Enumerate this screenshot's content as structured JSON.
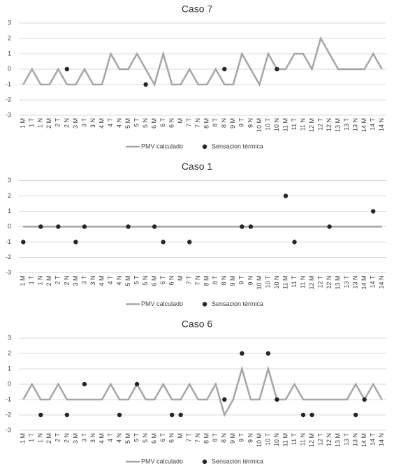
{
  "chart_data": [
    {
      "type": "line",
      "title": "Caso 7",
      "categories": [
        "1 M",
        "1 T",
        "1 N",
        "2 M",
        "2 T",
        "2 N",
        "3 M",
        "3 T",
        "3 N",
        "4 M",
        "4 T",
        "4 N",
        "5 M",
        "5 T",
        "5 N",
        "6 M",
        "6 T",
        "6 N",
        "M",
        "7 T",
        "7 N",
        "8 M",
        "8 T",
        "8 N",
        "9 M",
        "9 T",
        "9 N",
        "10 M",
        "10 T",
        "10 N",
        "11 M",
        "11 T",
        "11 N",
        "12 M",
        "12 T",
        "12 N",
        "13 M",
        "13 T",
        "13 N",
        "14 M",
        "14 T",
        "14 N"
      ],
      "series": [
        {
          "name": "PMV calculado",
          "color": "#a6a6a6",
          "values": [
            -1,
            0,
            -1,
            -1,
            0,
            -1,
            -1,
            0,
            -1,
            -1,
            1,
            0,
            0,
            1,
            0,
            -1,
            1,
            -1,
            -1,
            0,
            -1,
            -1,
            0,
            -1,
            -1,
            1,
            0,
            -1,
            1,
            0,
            0,
            1,
            1,
            0,
            2,
            1,
            0,
            0,
            0,
            0,
            1,
            0
          ]
        },
        {
          "name": "Sensacion térmica",
          "color": "#262626",
          "type": "scatter",
          "values": [
            null,
            null,
            null,
            null,
            null,
            0,
            null,
            null,
            null,
            null,
            null,
            null,
            null,
            null,
            -1,
            null,
            null,
            null,
            null,
            null,
            null,
            null,
            null,
            0,
            null,
            null,
            null,
            null,
            null,
            0,
            null,
            null,
            null,
            null,
            null,
            null,
            null,
            null,
            null,
            null,
            null,
            null
          ]
        }
      ],
      "ylim": [
        -3,
        3
      ],
      "yticks": [
        -3,
        -2,
        -1,
        0,
        1,
        2,
        3
      ],
      "grid": true,
      "legend": "bottom"
    },
    {
      "type": "line",
      "title": "Caso 1",
      "categories": [
        "1 M",
        "1 T",
        "1 N",
        "2 M",
        "2 T",
        "2 N",
        "3 M",
        "3 T",
        "3 N",
        "4 M",
        "4 T",
        "4 N",
        "5 M",
        "5 T",
        "5 N",
        "6 M",
        "6 T",
        "6 N",
        "M",
        "7 T",
        "7 N",
        "8 M",
        "8 T",
        "8 N",
        "9 M",
        "9 T",
        "9 N",
        "10 M",
        "10 T",
        "10 N",
        "11 M",
        "11 T",
        "11 N",
        "12 M",
        "12 T",
        "12 N",
        "13 M",
        "13 T",
        "13 N",
        "14 M",
        "14 T",
        "14 N"
      ],
      "series": [
        {
          "name": "PMV calculado",
          "color": "#a6a6a6",
          "values": [
            0,
            0,
            0,
            0,
            0,
            0,
            0,
            0,
            0,
            0,
            0,
            0,
            0,
            0,
            0,
            0,
            0,
            0,
            0,
            0,
            0,
            0,
            0,
            0,
            0,
            0,
            0,
            0,
            0,
            0,
            0,
            0,
            0,
            0,
            0,
            0,
            0,
            0,
            0,
            0,
            0,
            0
          ]
        },
        {
          "name": "Sensacion térmica",
          "color": "#262626",
          "type": "scatter",
          "values": [
            -1,
            null,
            0,
            null,
            0,
            null,
            -1,
            0,
            null,
            null,
            null,
            null,
            0,
            null,
            null,
            0,
            -1,
            null,
            null,
            -1,
            null,
            null,
            null,
            null,
            null,
            0,
            0,
            null,
            null,
            null,
            2,
            -1,
            null,
            null,
            null,
            0,
            null,
            null,
            null,
            null,
            1,
            null
          ]
        }
      ],
      "ylim": [
        -3,
        3
      ],
      "yticks": [
        -3,
        -2,
        -1,
        0,
        1,
        2,
        3
      ],
      "grid": true,
      "legend": "bottom"
    },
    {
      "type": "line",
      "title": "Caso 6",
      "categories": [
        "1 M",
        "1 T",
        "1 N",
        "2 M",
        "2 T",
        "2 N",
        "3 M",
        "3 T",
        "3 N",
        "4 M",
        "4 T",
        "4 N",
        "5 M",
        "5 T",
        "5 N",
        "6 M",
        "6 T",
        "6 N",
        "M",
        "7 T",
        "7 N",
        "8 M",
        "8 T",
        "8 N",
        "9 M",
        "9 T",
        "9 N",
        "10 M",
        "10 T",
        "10 N",
        "11 M",
        "11 T",
        "11 N",
        "12 M",
        "12 T",
        "12 N",
        "13 M",
        "13 T",
        "13 N",
        "14 M",
        "14 T",
        "14 N"
      ],
      "series": [
        {
          "name": "PMV calculado",
          "color": "#a6a6a6",
          "values": [
            -1,
            0,
            -1,
            -1,
            0,
            -1,
            -1,
            -1,
            -1,
            -1,
            0,
            -1,
            -1,
            0,
            -1,
            -1,
            0,
            -1,
            -1,
            0,
            -1,
            -1,
            0,
            -2,
            -1,
            1,
            -1,
            -1,
            1,
            -1,
            -1,
            0,
            -1,
            -1,
            -1,
            -1,
            -1,
            -1,
            0,
            -1,
            0,
            -1
          ]
        },
        {
          "name": "Sensacion térmica",
          "color": "#262626",
          "type": "scatter",
          "values": [
            null,
            null,
            -2,
            null,
            null,
            -2,
            null,
            0,
            null,
            null,
            null,
            -2,
            null,
            0,
            null,
            null,
            null,
            -2,
            -2,
            null,
            null,
            null,
            null,
            -1,
            null,
            2,
            null,
            null,
            2,
            -1,
            null,
            null,
            -2,
            -2,
            null,
            null,
            null,
            null,
            -2,
            -1,
            null,
            null
          ]
        }
      ],
      "ylim": [
        -3,
        3
      ],
      "yticks": [
        -3,
        -2,
        -1,
        0,
        1,
        2,
        3
      ],
      "grid": true,
      "legend": "bottom"
    }
  ]
}
